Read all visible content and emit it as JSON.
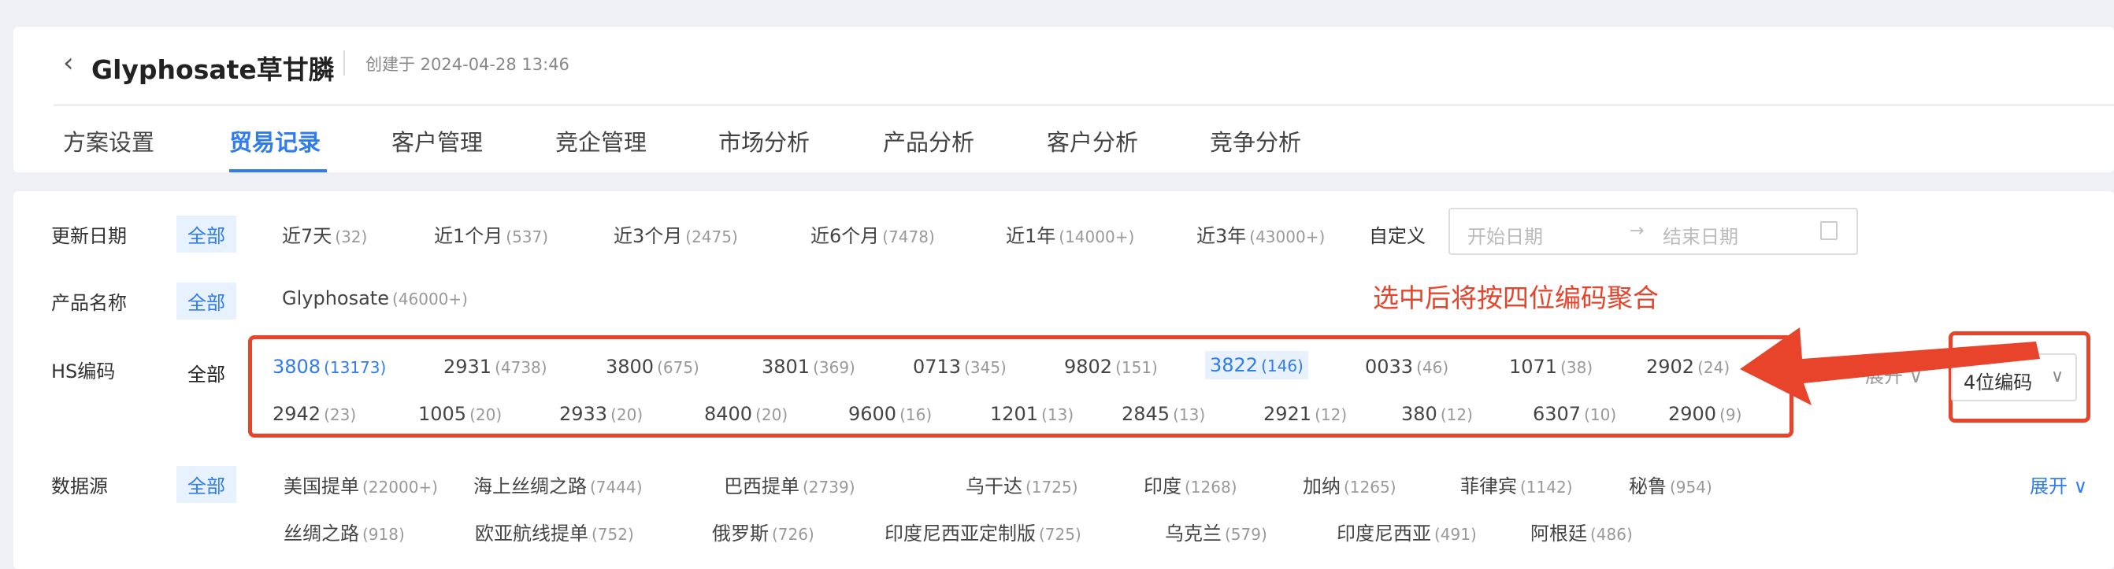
{
  "header": {
    "back_icon": "chevron-left-icon",
    "title": "Glyphosate草甘膦",
    "created": "创建于 2024-04-28 13:46"
  },
  "tabs": [
    {
      "label": "方案设置"
    },
    {
      "label": "贸易记录",
      "active": true
    },
    {
      "label": "客户管理"
    },
    {
      "label": "竞企管理"
    },
    {
      "label": "市场分析"
    },
    {
      "label": "产品分析"
    },
    {
      "label": "客户分析"
    },
    {
      "label": "竞争分析"
    }
  ],
  "filters": {
    "date": {
      "label": "更新日期",
      "all": "全部",
      "items": [
        {
          "text": "近7天",
          "count": "(32)"
        },
        {
          "text": "近1个月",
          "count": "(537)"
        },
        {
          "text": "近3个月",
          "count": "(2475)"
        },
        {
          "text": "近6个月",
          "count": "(7478)"
        },
        {
          "text": "近1年",
          "count": "(14000+)"
        },
        {
          "text": "近3年",
          "count": "(43000+)"
        }
      ],
      "custom": "自定义",
      "start_placeholder": "开始日期",
      "end_placeholder": "结束日期",
      "arrow": "→",
      "calendar_icon": "calendar-icon"
    },
    "product": {
      "label": "产品名称",
      "all": "全部",
      "items": [
        {
          "text": "Glyphosate",
          "count": "(46000+)"
        }
      ]
    },
    "hs": {
      "label": "HS编码",
      "all": "全部",
      "items": [
        {
          "text": "3808",
          "count": "(13173)",
          "selected": true
        },
        {
          "text": "2931",
          "count": "(4738)"
        },
        {
          "text": "3800",
          "count": "(675)"
        },
        {
          "text": "3801",
          "count": "(369)"
        },
        {
          "text": "0713",
          "count": "(345)"
        },
        {
          "text": "9802",
          "count": "(151)"
        },
        {
          "text": "3822",
          "count": "(146)",
          "highlighted": true
        },
        {
          "text": "0033",
          "count": "(46)"
        },
        {
          "text": "1071",
          "count": "(38)"
        },
        {
          "text": "2902",
          "count": "(24)"
        },
        {
          "text": "2942",
          "count": "(23)"
        },
        {
          "text": "1005",
          "count": "(20)"
        },
        {
          "text": "2933",
          "count": "(20)"
        },
        {
          "text": "8400",
          "count": "(20)"
        },
        {
          "text": "9600",
          "count": "(16)"
        },
        {
          "text": "1201",
          "count": "(13)"
        },
        {
          "text": "2845",
          "count": "(13)"
        },
        {
          "text": "2921",
          "count": "(12)"
        },
        {
          "text": "380",
          "count": "(12)"
        },
        {
          "text": "6307",
          "count": "(10)"
        },
        {
          "text": "2900",
          "count": "(9)"
        }
      ],
      "expand": "展开",
      "select_value": "4位编码",
      "annotation": "选中后将按四位编码聚合",
      "annotation_color": "#e8442b"
    },
    "source": {
      "label": "数据源",
      "all": "全部",
      "items": [
        {
          "text": "美国提单",
          "count": "(22000+)"
        },
        {
          "text": "海上丝绸之路",
          "count": "(7444)"
        },
        {
          "text": "巴西提单",
          "count": "(2739)"
        },
        {
          "text": "乌干达",
          "count": "(1725)"
        },
        {
          "text": "印度",
          "count": "(1268)"
        },
        {
          "text": "加纳",
          "count": "(1265)"
        },
        {
          "text": "菲律宾",
          "count": "(1142)"
        },
        {
          "text": "秘鲁",
          "count": "(954)"
        },
        {
          "text": "丝绸之路",
          "count": "(918)"
        },
        {
          "text": "欧亚航线提单",
          "count": "(752)"
        },
        {
          "text": "俄罗斯",
          "count": "(726)"
        },
        {
          "text": "印度尼西亚定制版",
          "count": "(725)"
        },
        {
          "text": "乌克兰",
          "count": "(579)"
        },
        {
          "text": "印度尼西亚",
          "count": "(491)"
        },
        {
          "text": "阿根廷",
          "count": "(486)"
        }
      ],
      "expand": "展开"
    }
  },
  "colors": {
    "accent": "#2f7cf0",
    "annotation": "#e8442b"
  }
}
